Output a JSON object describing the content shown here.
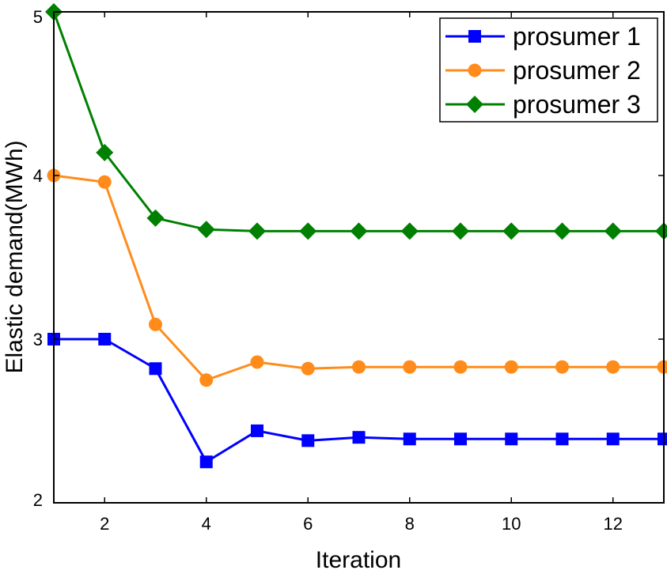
{
  "chart_data": {
    "type": "line",
    "title": "",
    "xlabel": "Iteration",
    "ylabel": "Elastic demand(MWh)",
    "xlim": [
      1,
      13
    ],
    "ylim": [
      2,
      5
    ],
    "xticks": [
      2,
      4,
      6,
      8,
      10,
      12
    ],
    "yticks": [
      2,
      3,
      4,
      5
    ],
    "x": [
      1,
      2,
      3,
      4,
      5,
      6,
      7,
      8,
      9,
      10,
      11,
      12,
      13
    ],
    "legend_position": "top-right",
    "grid": false,
    "series": [
      {
        "name": "prosumer 1",
        "color": "#0000ff",
        "marker": "square",
        "values": [
          3.0,
          3.0,
          2.82,
          2.25,
          2.44,
          2.38,
          2.4,
          2.39,
          2.39,
          2.39,
          2.39,
          2.39,
          2.39
        ]
      },
      {
        "name": "prosumer 2",
        "color": "#ff8c1a",
        "marker": "circle",
        "values": [
          4.0,
          3.96,
          3.09,
          2.75,
          2.86,
          2.82,
          2.83,
          2.83,
          2.83,
          2.83,
          2.83,
          2.83,
          2.83
        ]
      },
      {
        "name": "prosumer 3",
        "color": "#008000",
        "marker": "diamond",
        "values": [
          5.0,
          4.14,
          3.74,
          3.67,
          3.66,
          3.66,
          3.66,
          3.66,
          3.66,
          3.66,
          3.66,
          3.66,
          3.66
        ]
      }
    ]
  }
}
